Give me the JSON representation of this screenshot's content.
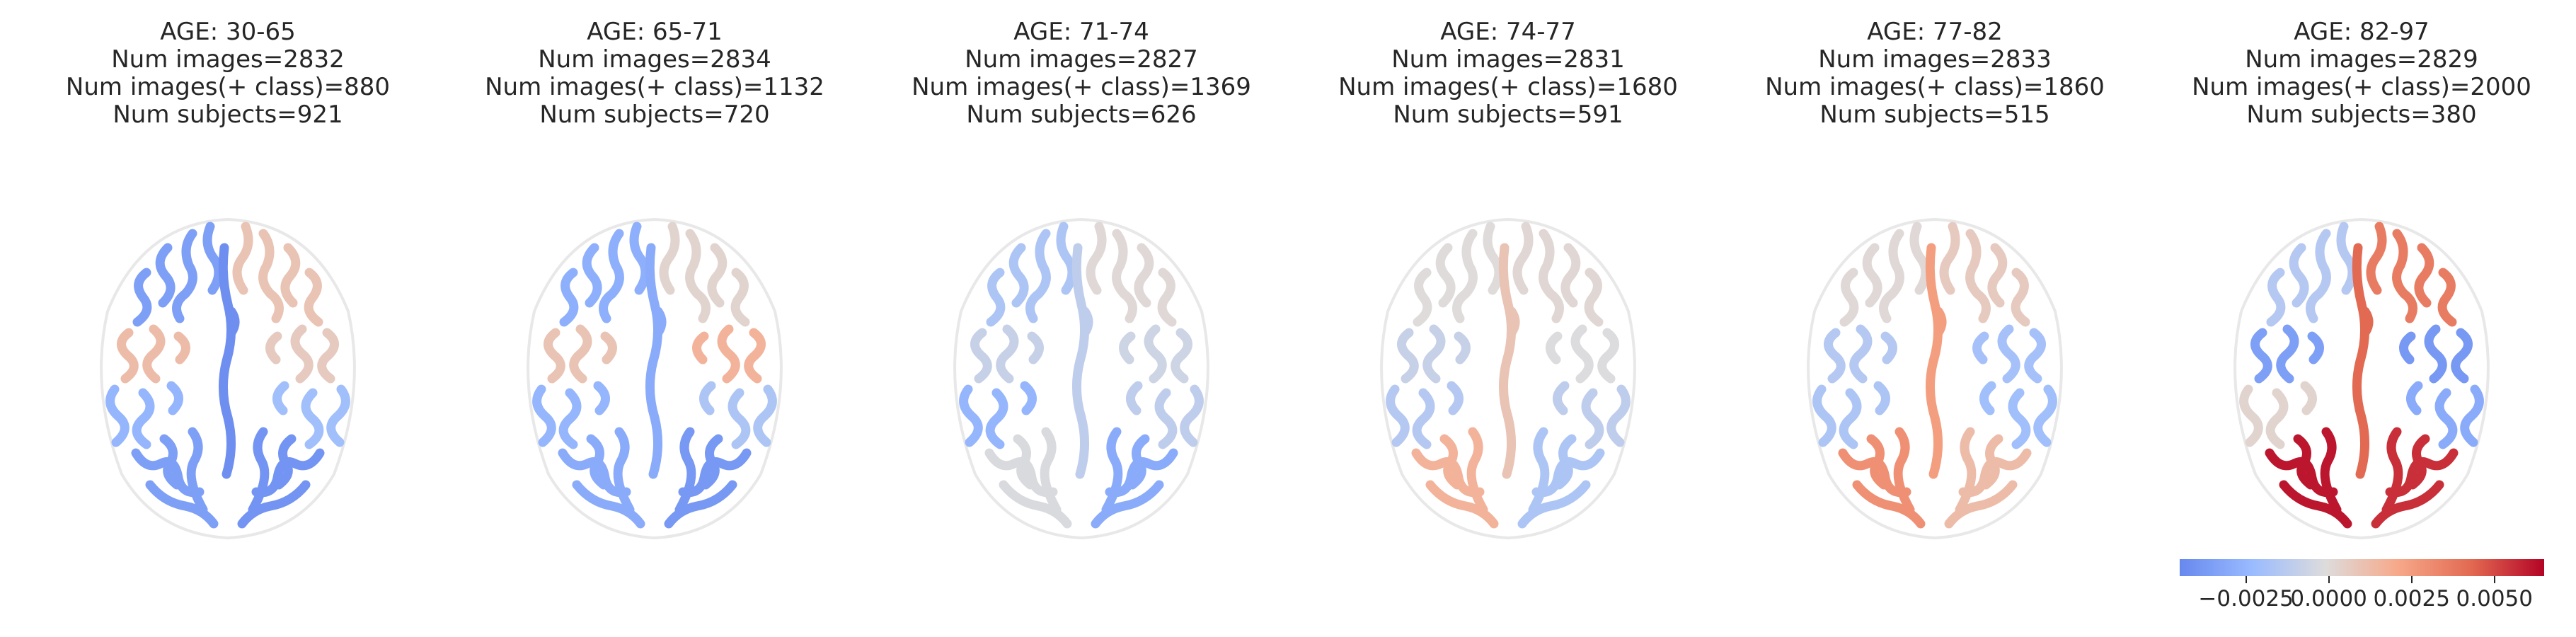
{
  "chart_data": [
    {
      "type": "heatmap",
      "panel": 1,
      "title_lines": [
        "AGE: 30-65",
        "Num images=2832",
        "Num images(+ class)=880",
        "Num subjects=921"
      ],
      "regions": {
        "left_frontal": -0.0035,
        "right_frontal": 0.0015,
        "left_central": 0.0018,
        "right_central": 0.0012,
        "left_temporal": -0.0025,
        "right_temporal": -0.002,
        "left_occipital": -0.0035,
        "right_occipital": -0.004,
        "midline": -0.0042
      }
    },
    {
      "type": "heatmap",
      "panel": 2,
      "title_lines": [
        "AGE: 65-71",
        "Num images=2834",
        "Num images(+ class)=1132",
        "Num subjects=720"
      ],
      "regions": {
        "left_frontal": -0.0028,
        "right_frontal": 0.0008,
        "left_central": 0.0015,
        "right_central": 0.0022,
        "left_temporal": -0.0025,
        "right_temporal": -0.0015,
        "left_occipital": -0.003,
        "right_occipital": -0.0038,
        "midline": -0.003
      }
    },
    {
      "type": "heatmap",
      "panel": 3,
      "title_lines": [
        "AGE: 71-74",
        "Num images=2827",
        "Num images(+ class)=1369",
        "Num subjects=626"
      ],
      "regions": {
        "left_frontal": -0.0015,
        "right_frontal": 0.0006,
        "left_central": -0.0005,
        "right_central": -0.0002,
        "left_temporal": -0.0025,
        "right_temporal": -0.0008,
        "left_occipital": 0.0003,
        "right_occipital": -0.003,
        "midline": -0.0008
      }
    },
    {
      "type": "heatmap",
      "panel": 4,
      "title_lines": [
        "AGE: 74-77",
        "Num images=2831",
        "Num images(+ class)=1680",
        "Num subjects=591"
      ],
      "regions": {
        "left_frontal": 0.0005,
        "right_frontal": 0.0007,
        "left_central": -0.0005,
        "right_central": 0.0004,
        "left_temporal": -0.0012,
        "right_temporal": -0.0008,
        "left_occipital": 0.0022,
        "right_occipital": -0.0015,
        "midline": 0.0015
      }
    },
    {
      "type": "heatmap",
      "panel": 5,
      "title_lines": [
        "AGE: 77-82",
        "Num images=2833",
        "Num images(+ class)=1860",
        "Num subjects=515"
      ],
      "regions": {
        "left_frontal": 0.0006,
        "right_frontal": 0.0012,
        "left_central": -0.0012,
        "right_central": -0.0018,
        "left_temporal": -0.0015,
        "right_temporal": -0.002,
        "left_occipital": 0.0035,
        "right_occipital": 0.0018,
        "midline": 0.003
      }
    },
    {
      "type": "heatmap",
      "panel": 6,
      "title_lines": [
        "AGE: 82-97",
        "Num images=2829",
        "Num images(+ class)=2000",
        "Num subjects=380"
      ],
      "regions": {
        "left_frontal": -0.0012,
        "right_frontal": 0.0042,
        "left_central": -0.0035,
        "right_central": -0.0038,
        "left_temporal": 0.0008,
        "right_temporal": -0.003,
        "left_occipital": 0.0062,
        "right_occipital": 0.0058,
        "midline": 0.0048
      }
    }
  ],
  "colorbar": {
    "vmin": -0.0045,
    "vmax": 0.0065,
    "ticks": [
      -0.0025,
      0.0,
      0.0025,
      0.005
    ],
    "tick_labels": [
      "−0.0025",
      "0.0000",
      "0.0025",
      "0.0050"
    ],
    "colormap": "coolwarm"
  }
}
